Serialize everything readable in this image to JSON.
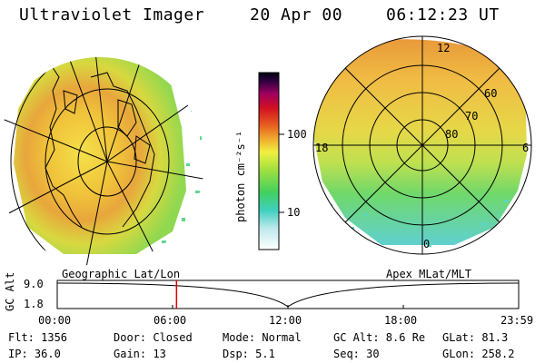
{
  "header": {
    "title": "Ultraviolet Imager",
    "date": "20 Apr 00",
    "time": "06:12:23 UT"
  },
  "colorbar": {
    "unit_label": "photon cm⁻²s⁻¹",
    "ticks": [
      "100",
      "10"
    ]
  },
  "left_panel": {
    "caption": "Geographic Lat/Lon"
  },
  "right_panel": {
    "caption": "Apex MLat/MLT",
    "mlt_labels": {
      "top": "12",
      "left": "18",
      "right": "6",
      "bottom": "0"
    },
    "lat_labels": [
      "60",
      "70",
      "80"
    ]
  },
  "timeline": {
    "ylabel": "GC Alt",
    "yticks": [
      "9.0",
      "1.8"
    ],
    "xticks": [
      "00:00",
      "06:00",
      "12:00",
      "18:00",
      "23:59"
    ],
    "current_time_hours": 6.2
  },
  "info": {
    "flt": "Flt: 1356",
    "ip": "IP: 36.0",
    "door": "Door: Closed",
    "gain": "Gain: 13",
    "mode": "Mode: Normal",
    "dsp": "Dsp:    5.1",
    "gcalt": "GC Alt: 8.6 Re",
    "seq": "Seq: 30",
    "glat": "GLat:  81.3",
    "glon": "GLon: 258.2"
  },
  "colors": {
    "marker": "#e00000"
  }
}
